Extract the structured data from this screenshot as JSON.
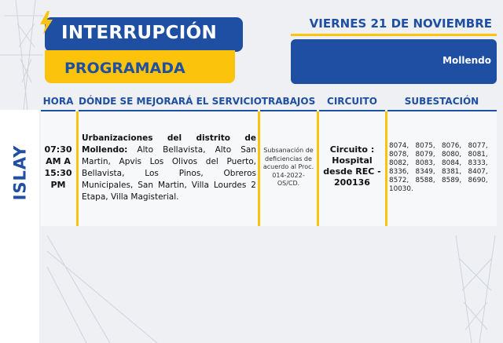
{
  "header": {
    "title": "INTERRUPCIÓN",
    "subtitle": "PROGRAMADA",
    "date": "VIERNES 21 DE NOVIEMBRE",
    "location": "Mollendo"
  },
  "region": "ISLAY",
  "table": {
    "columns": [
      "HORA",
      "DÓNDE SE MEJORARÁ EL SERVICIO",
      "TRABAJOS",
      "CIRCUITO",
      "SUBESTACIÓN"
    ],
    "row": {
      "hora": [
        "07:30",
        "AM A",
        "15:30",
        "PM"
      ],
      "donde_bold": "Urbanizaciones del distrito de Mollendo:",
      "donde_text": " Alto Bellavista, Alto San Martin, Apvis Los Olivos del Puerto, Bellavista, Los Pinos, Obreros Municipales, San Martin, Villa Lourdes 2 Etapa, Villa Magisterial.",
      "trabajos": "Subsanación de deficiencias de acuerdo al Proc. 014-2022-OS/CD.",
      "circuito": "Circuito : Hospital desde REC - 200136",
      "subestaciones": [
        "8074,",
        "8075,",
        "8076,",
        "8077,",
        "8078,",
        "8079,",
        "8080,",
        "8081,",
        "8082,",
        "8083,",
        "8084,",
        "8333,",
        "8336,",
        "8349,",
        "8381,",
        "8407,",
        "8572,",
        "8588,",
        "8589,",
        "8690,",
        "10030."
      ]
    }
  },
  "colors": {
    "primary_blue": "#1e4fa3",
    "accent_yellow": "#fcc30c"
  }
}
